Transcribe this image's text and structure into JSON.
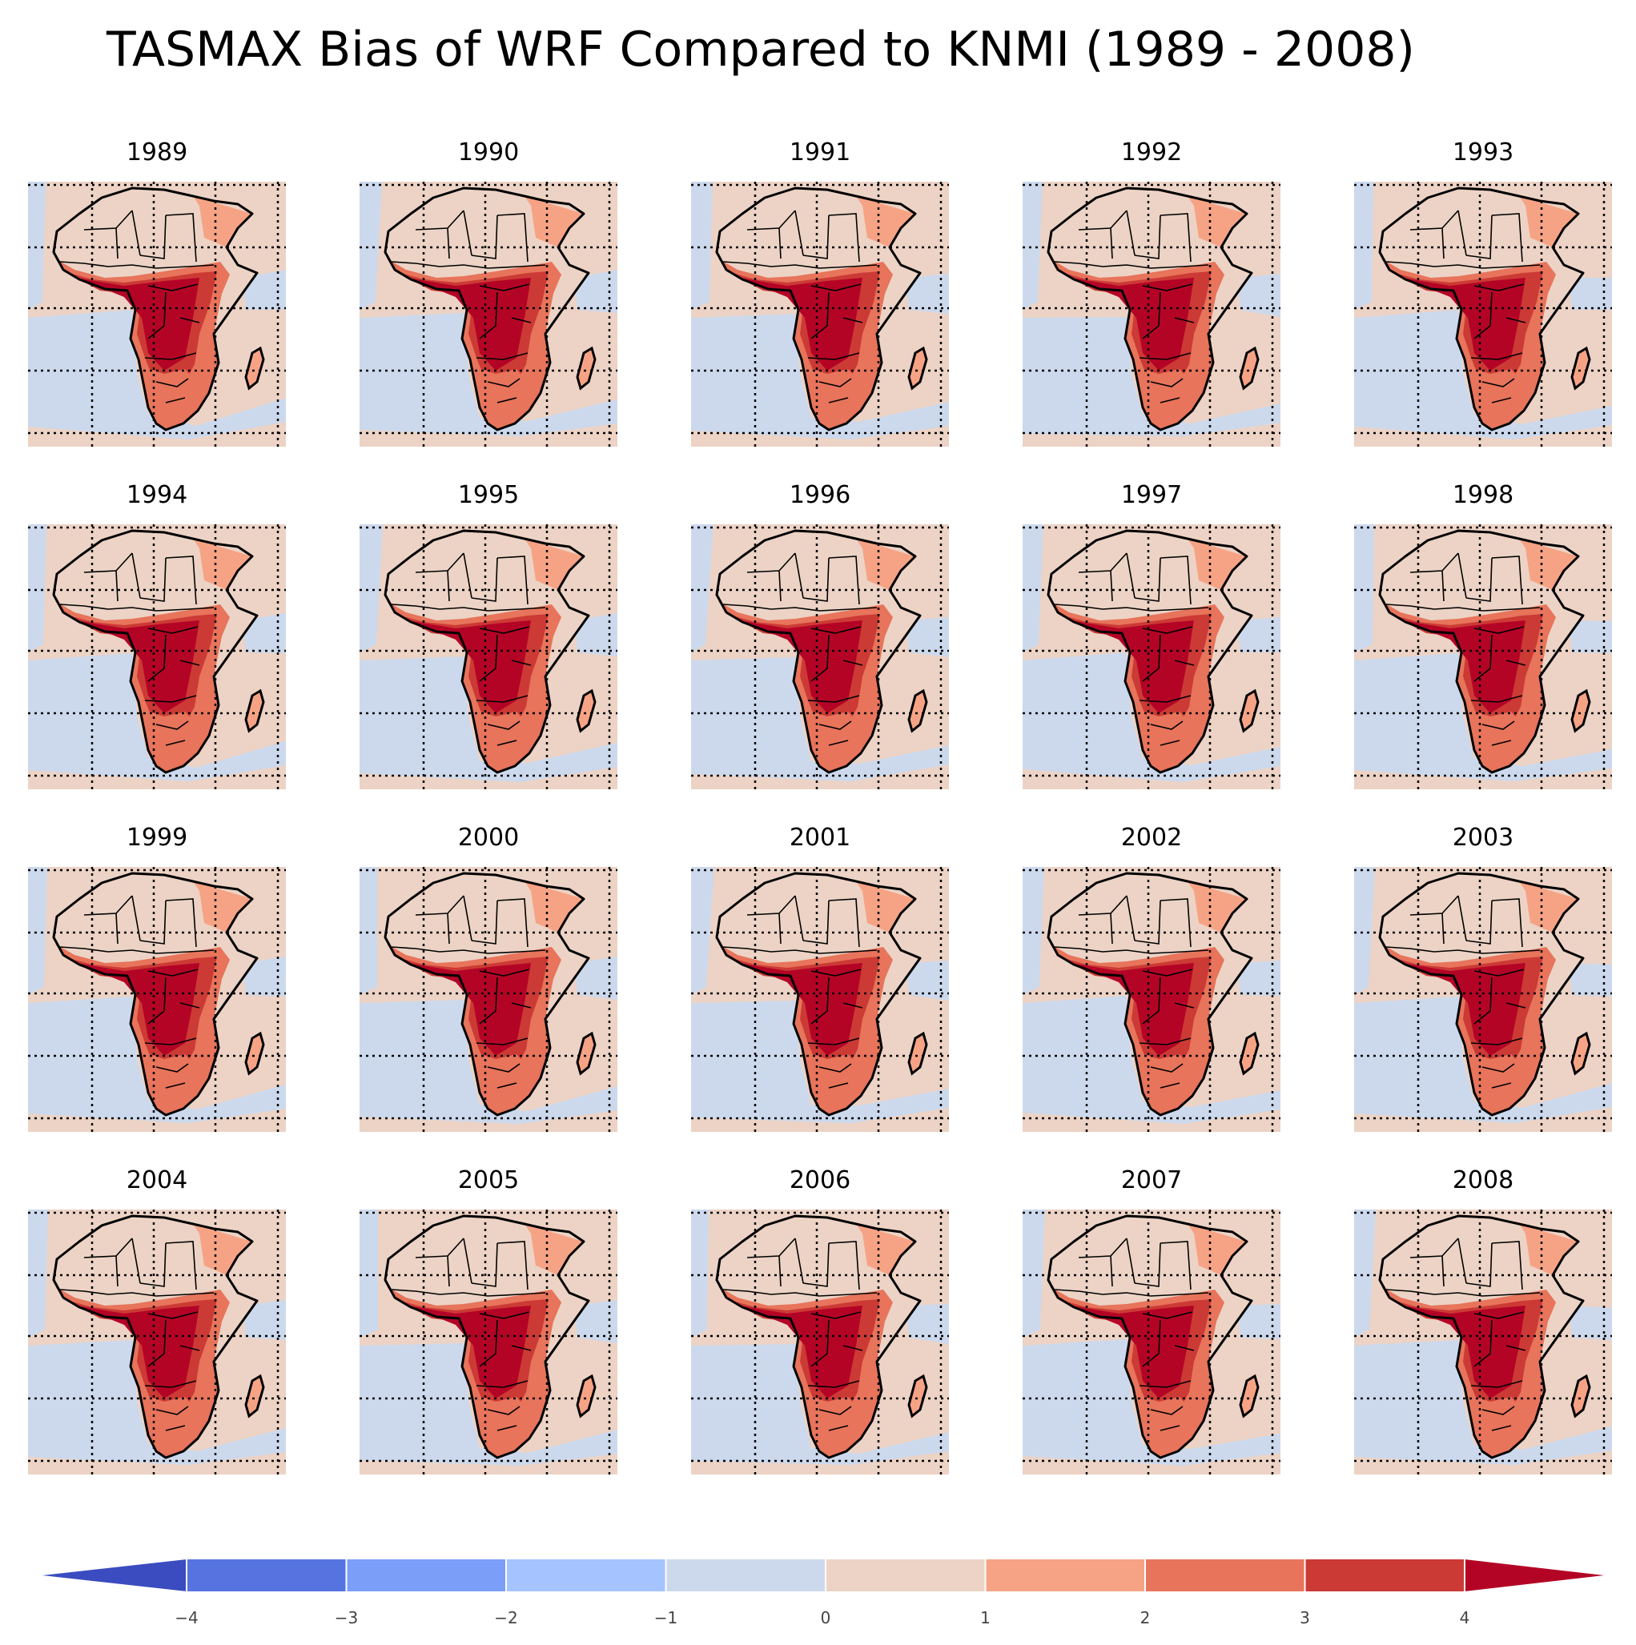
{
  "title": "TASMAX Bias of WRF Compared to KNMI (1989 - 2008)",
  "years": [
    "1989",
    "1990",
    "1991",
    "1992",
    "1993",
    "1994",
    "1995",
    "1996",
    "1997",
    "1998",
    "1999",
    "2000",
    "2001",
    "2002",
    "2003",
    "2004",
    "2005",
    "2006",
    "2007",
    "2008"
  ],
  "colorbar": {
    "ticks": [
      "−4",
      "−3",
      "−2",
      "−1",
      "0",
      "1",
      "2",
      "3",
      "4"
    ],
    "colors": [
      "#3b4cc0",
      "#5673e0",
      "#7b9ff9",
      "#a5c3fe",
      "#ccd9ed",
      "#ecd3c5",
      "#f6a385",
      "#e7745b",
      "#cc3a35",
      "#b40426"
    ],
    "extend": "both"
  },
  "map_colors": {
    "ocean_cool": "#ccd9ed",
    "ocean_warm": "#ecd3c5",
    "land_1": "#ecd3c5",
    "land_2": "#f6a385",
    "land_3": "#e7745b",
    "land_4": "#cc3a35",
    "land_5": "#b40426",
    "border": "#000000"
  }
}
